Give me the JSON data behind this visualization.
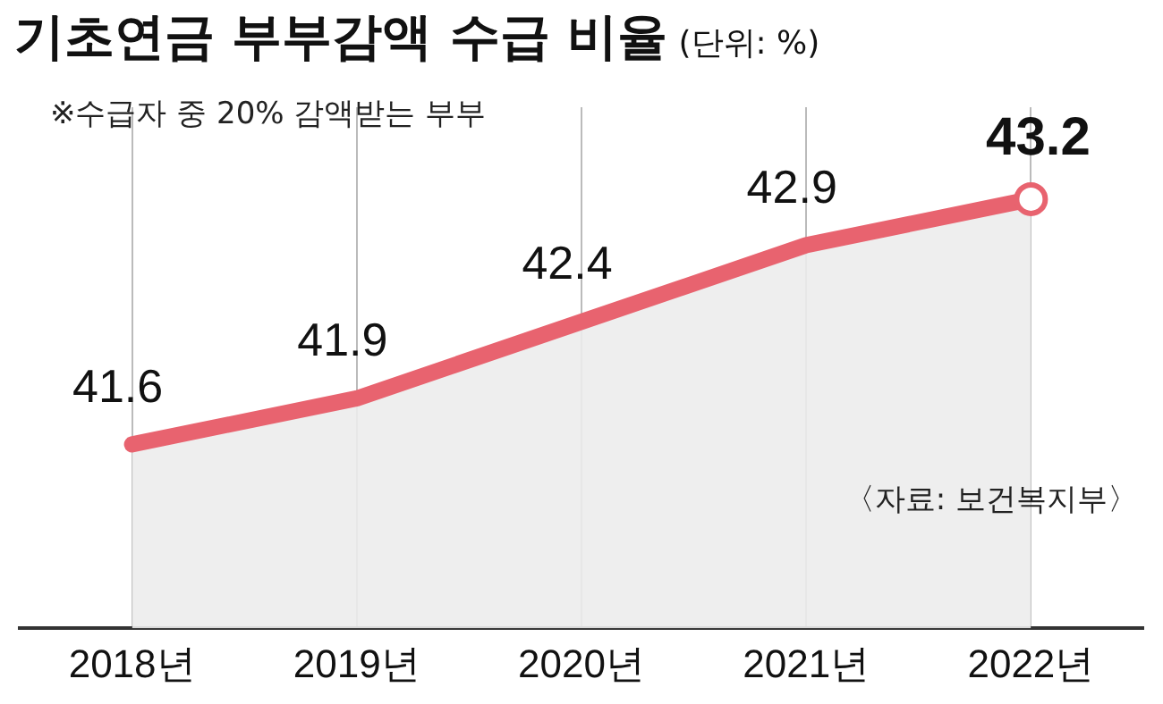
{
  "chart_data": {
    "type": "area",
    "title": "기초연금 부부감액 수급 비율",
    "subtitle": "(단위: %)",
    "annotations": [
      "※수급자 중 20% 감액받는 부부",
      "〈자료: 보건복지부〉"
    ],
    "categories": [
      "2018년",
      "2019년",
      "2020년",
      "2021년",
      "2022년"
    ],
    "series": [
      {
        "color": "#e8636f",
        "values": [
          41.6,
          41.9,
          42.4,
          42.9,
          43.2
        ]
      }
    ],
    "ylim": [
      40.4,
      43.8
    ],
    "data_labels": true,
    "grid": "x",
    "legend": false,
    "line_style": "solid"
  }
}
